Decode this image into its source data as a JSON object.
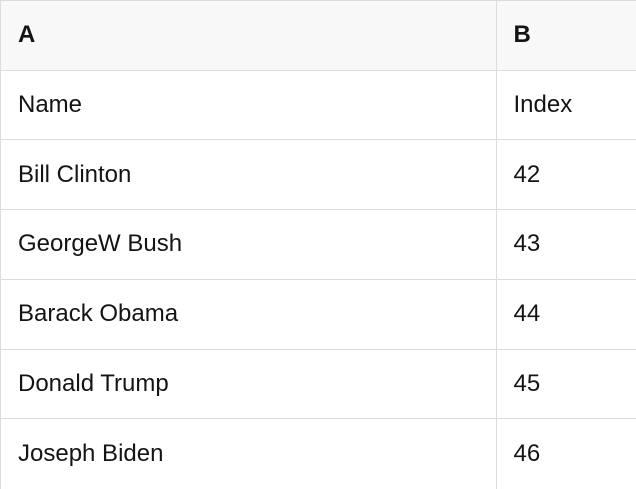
{
  "table": {
    "header": [
      "A",
      "B"
    ],
    "rows": [
      [
        "Name",
        "Index"
      ],
      [
        "Bill Clinton",
        "42"
      ],
      [
        "GeorgeW Bush",
        "43"
      ],
      [
        "Barack Obama",
        "44"
      ],
      [
        "Donald Trump",
        "45"
      ],
      [
        "Joseph Biden",
        "46"
      ]
    ]
  },
  "colors": {
    "header_bg": "#f8f8f8",
    "border": "#dcdcdc",
    "text": "#141414"
  }
}
